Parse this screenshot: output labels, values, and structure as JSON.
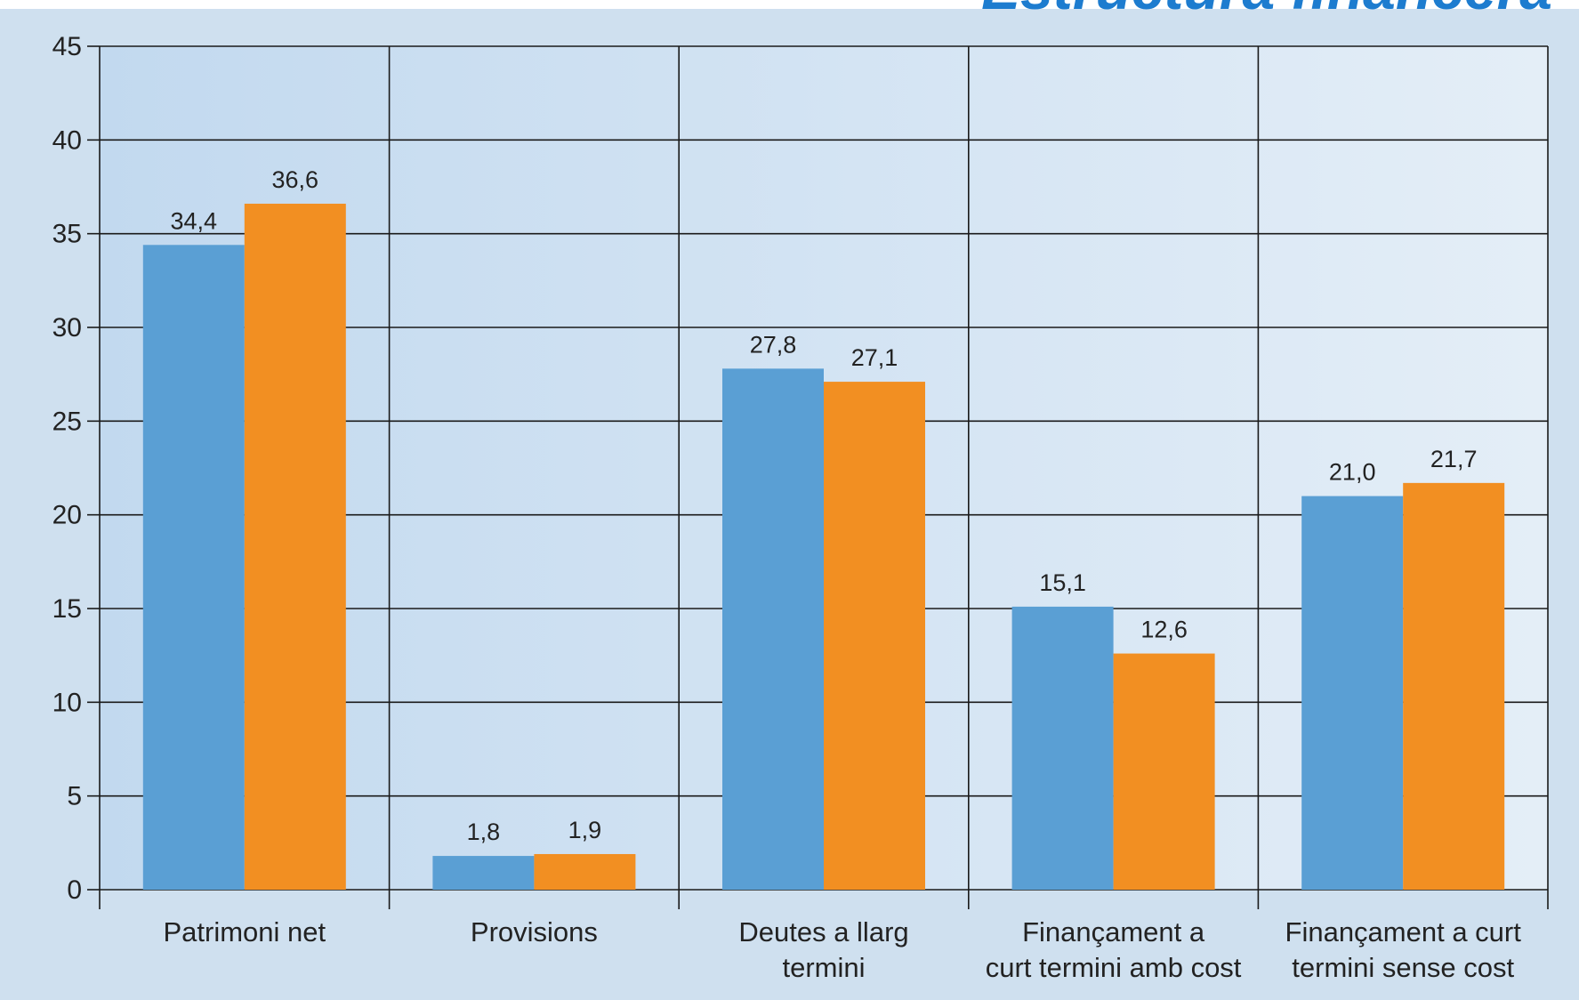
{
  "heading": "Estructura financera",
  "colors": {
    "series_a": "#5a9fd4",
    "series_b": "#f28f22",
    "panel_outer": "#cfe0ef",
    "panel_left": "#c2d9ef",
    "panel_right": "#e4eef7",
    "grid": "#1a1a1a",
    "heading": "#1d7ccf"
  },
  "chart_data": {
    "type": "bar",
    "title": "",
    "xlabel": "",
    "ylabel": "",
    "ylim": [
      0,
      45
    ],
    "yticks": [
      0,
      5,
      10,
      15,
      20,
      25,
      30,
      35,
      40,
      45
    ],
    "ytick_labels": [
      "0",
      "5",
      "10",
      "15",
      "20",
      "25",
      "30",
      "35",
      "40",
      "45"
    ],
    "grid": true,
    "legend": "none",
    "categories": [
      [
        "Patrimoni net"
      ],
      [
        "Provisions"
      ],
      [
        "Deutes a llarg",
        "termini"
      ],
      [
        "Finançament a",
        "curt termini amb cost"
      ],
      [
        "Finançament a curt",
        "termini sense cost"
      ]
    ],
    "series": [
      {
        "values": [
          34.4,
          1.8,
          27.8,
          15.1,
          21.0
        ],
        "labels": [
          "34,4",
          "1,8",
          "27,8",
          "15,1",
          "21,0"
        ]
      },
      {
        "values": [
          36.6,
          1.9,
          27.1,
          12.6,
          21.7
        ],
        "labels": [
          "36,6",
          "1,9",
          "27,1",
          "12,6",
          "21,7"
        ]
      }
    ]
  }
}
